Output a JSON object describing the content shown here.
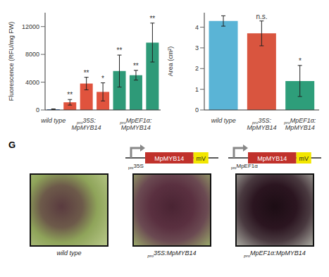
{
  "chart_data": [
    {
      "type": "bar",
      "categories": [
        "wild type",
        null,
        "pro35S:MpMYB14",
        null,
        null,
        "proMpEF1α:MpMYB14",
        null
      ],
      "values": [
        100,
        1100,
        3800,
        2600,
        5600,
        5000,
        9700
      ],
      "errors": [
        50,
        400,
        900,
        1300,
        2300,
        700,
        2800
      ],
      "annotations": [
        null,
        "**",
        "**",
        "*",
        "**",
        "**",
        "**"
      ],
      "colors": [
        "#3b6fb6",
        "#e0533d",
        "#e0533d",
        "#e0533d",
        "#2e9a78",
        "#2e9a78",
        "#2e9a78"
      ],
      "y_label": "Fluorescence (RFU/mg FW)",
      "ylim": [
        0,
        14000
      ],
      "yticks": [
        0,
        4000,
        8000,
        12000
      ],
      "grid": false
    },
    {
      "type": "bar",
      "categories": [
        "wild type",
        "pro35S:MpMYB14",
        "proMpEF1α:MpMYB14"
      ],
      "values": [
        4.3,
        3.7,
        1.4
      ],
      "errors": [
        0.25,
        0.6,
        0.75
      ],
      "annotations": [
        null,
        "n.s.",
        "*"
      ],
      "colors": [
        "#5ab4d6",
        "#d9553f",
        "#2e9e7a"
      ],
      "y_label": "Area (cm²)",
      "ylim": [
        0,
        4.7
      ],
      "yticks": [
        0,
        1,
        2,
        3,
        4
      ],
      "grid": false
    }
  ],
  "panel_g": {
    "label": "G",
    "constructs": [
      {
        "promoter": "pro35S",
        "gene": "MpMYB14",
        "tag": "mV"
      },
      {
        "promoter": "proMpEF1α",
        "gene": "MpMYB14",
        "tag": "mV"
      }
    ],
    "captions": [
      "wild type",
      "pro35S:MpMYB14",
      "proMpEF1α:MpMYB14"
    ]
  }
}
